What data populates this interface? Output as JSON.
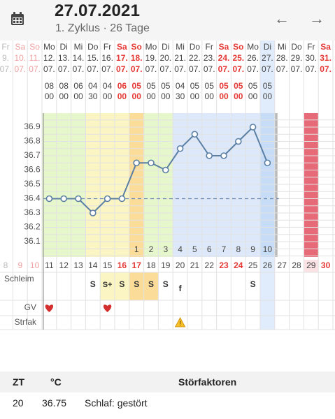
{
  "header": {
    "title": "27.07.2021",
    "subtitle": "1. Zyklus · 26 Tage",
    "prev_icon": "←",
    "next_icon": "→",
    "calendar_icon": "calendar-icon"
  },
  "colors": {
    "green": "#e6f7cc",
    "yellow": "#fbf5c4",
    "orange": "#fbdd99",
    "lightgreen": "#e6f7cc",
    "blue": "#dde9fb",
    "blue_today": "#c7ddf7",
    "red_column": "#e66a77",
    "weekend_red": "#e53935",
    "line": "#5b7fa3",
    "coverline": "#6a86b0"
  },
  "chart_data": {
    "type": "line",
    "columns": [
      {
        "weekday": "Fr",
        "date": "9.",
        "month": "07.",
        "cd": "8",
        "weekend": false
      },
      {
        "weekday": "Sa",
        "date": "10.",
        "month": "07.",
        "cd": "9",
        "weekend": true
      },
      {
        "weekday": "So",
        "date": "11.",
        "month": "07.",
        "cd": "10",
        "weekend": true
      },
      {
        "weekday": "Mo",
        "date": "12.",
        "month": "07.",
        "cd": "11",
        "weekend": false,
        "time_h": "08",
        "time_m": "00",
        "temp": 36.4,
        "bg": "green",
        "gv": true
      },
      {
        "weekday": "Di",
        "date": "13.",
        "month": "07.",
        "cd": "12",
        "weekend": false,
        "time_h": "08",
        "time_m": "00",
        "temp": 36.4,
        "bg": "green"
      },
      {
        "weekday": "Mi",
        "date": "14.",
        "month": "07.",
        "cd": "13",
        "weekend": false,
        "time_h": "06",
        "time_m": "00",
        "temp": 36.4,
        "bg": "green"
      },
      {
        "weekday": "Do",
        "date": "15.",
        "month": "07.",
        "cd": "14",
        "weekend": false,
        "time_h": "04",
        "time_m": "30",
        "temp": 36.3,
        "bg": "yellow",
        "mucus": "S"
      },
      {
        "weekday": "Fr",
        "date": "16.",
        "month": "07.",
        "cd": "15",
        "weekend": false,
        "time_h": "04",
        "time_m": "00",
        "temp": 36.4,
        "bg": "yellow",
        "mucus": "S+",
        "mucus_bg": "yellow",
        "gv": true
      },
      {
        "weekday": "Sa",
        "date": "17.",
        "month": "07.",
        "cd": "16",
        "weekend": true,
        "time_h": "06",
        "time_m": "00",
        "temp": 36.4,
        "bg": "yellow",
        "mucus": "S",
        "mucus_bg": "yellow"
      },
      {
        "weekday": "So",
        "date": "18.",
        "month": "07.",
        "cd": "17",
        "weekend": true,
        "time_h": "05",
        "time_m": "00",
        "temp": 36.65,
        "bg": "orange",
        "mucus": "S",
        "mucus_bg": "orange",
        "post": "1"
      },
      {
        "weekday": "Mo",
        "date": "19.",
        "month": "07.",
        "cd": "18",
        "weekend": false,
        "time_h": "05",
        "time_m": "00",
        "temp": 36.65,
        "bg": "lightgreen",
        "mucus": "S",
        "mucus_bg": "orange",
        "post": "2"
      },
      {
        "weekday": "Di",
        "date": "20.",
        "month": "07.",
        "cd": "19",
        "weekend": false,
        "time_h": "05",
        "time_m": "00",
        "temp": 36.6,
        "bg": "lightgreen",
        "mucus": "S",
        "post": "3"
      },
      {
        "weekday": "Mi",
        "date": "21.",
        "month": "07.",
        "cd": "20",
        "weekend": false,
        "time_h": "04",
        "time_m": "30",
        "temp": 36.75,
        "bg": "blue",
        "mucus": "f",
        "post": "4",
        "warn": true
      },
      {
        "weekday": "Do",
        "date": "22.",
        "month": "07.",
        "cd": "21",
        "weekend": false,
        "time_h": "05",
        "time_m": "00",
        "temp": 36.85,
        "bg": "blue",
        "post": "5"
      },
      {
        "weekday": "Fr",
        "date": "23.",
        "month": "07.",
        "cd": "22",
        "weekend": false,
        "time_h": "05",
        "time_m": "00",
        "temp": 36.7,
        "bg": "blue",
        "post": "6"
      },
      {
        "weekday": "Sa",
        "date": "24.",
        "month": "07.",
        "cd": "23",
        "weekend": true,
        "time_h": "05",
        "time_m": "00",
        "temp": 36.7,
        "bg": "blue",
        "post": "7"
      },
      {
        "weekday": "So",
        "date": "25.",
        "month": "07.",
        "cd": "24",
        "weekend": true,
        "time_h": "05",
        "time_m": "00",
        "temp": 36.8,
        "bg": "blue",
        "post": "8"
      },
      {
        "weekday": "Mo",
        "date": "26.",
        "month": "07.",
        "cd": "25",
        "weekend": false,
        "time_h": "05",
        "time_m": "00",
        "temp": 36.9,
        "bg": "blue",
        "mucus": "S",
        "post": "9"
      },
      {
        "weekday": "Di",
        "date": "27.",
        "month": "07.",
        "cd": "26",
        "weekend": false,
        "time_h": "05",
        "time_m": "00",
        "temp": 36.65,
        "bg": "blue_today",
        "post": "10",
        "today": true
      },
      {
        "weekday": "Mi",
        "date": "28.",
        "month": "07.",
        "cd": "27",
        "weekend": false
      },
      {
        "weekday": "Do",
        "date": "29.",
        "month": "07.",
        "cd": "28",
        "weekend": false
      },
      {
        "weekday": "Fr",
        "date": "30.",
        "month": "07.",
        "cd": "29",
        "weekend": false,
        "bg": "red_column"
      },
      {
        "weekday": "Sa",
        "date": "31.",
        "month": "07.",
        "cd": "30",
        "weekend": true
      }
    ],
    "y_ticks": [
      "36.9",
      "36.8",
      "36.7",
      "36.6",
      "36.5",
      "36.4",
      "36.3",
      "36.2",
      "36.1"
    ],
    "ylim": [
      36.0,
      37.0
    ],
    "coverline": 36.4,
    "row_labels": {
      "mucus": "Schleim",
      "gv": "GV",
      "disturb": "Strfak"
    }
  },
  "table": {
    "headers": {
      "zt": "ZT",
      "temp": "°C",
      "factors": "Störfaktoren"
    },
    "row": {
      "zt": "20",
      "temp": "36.75",
      "factors": "Schlaf: gestört"
    }
  }
}
